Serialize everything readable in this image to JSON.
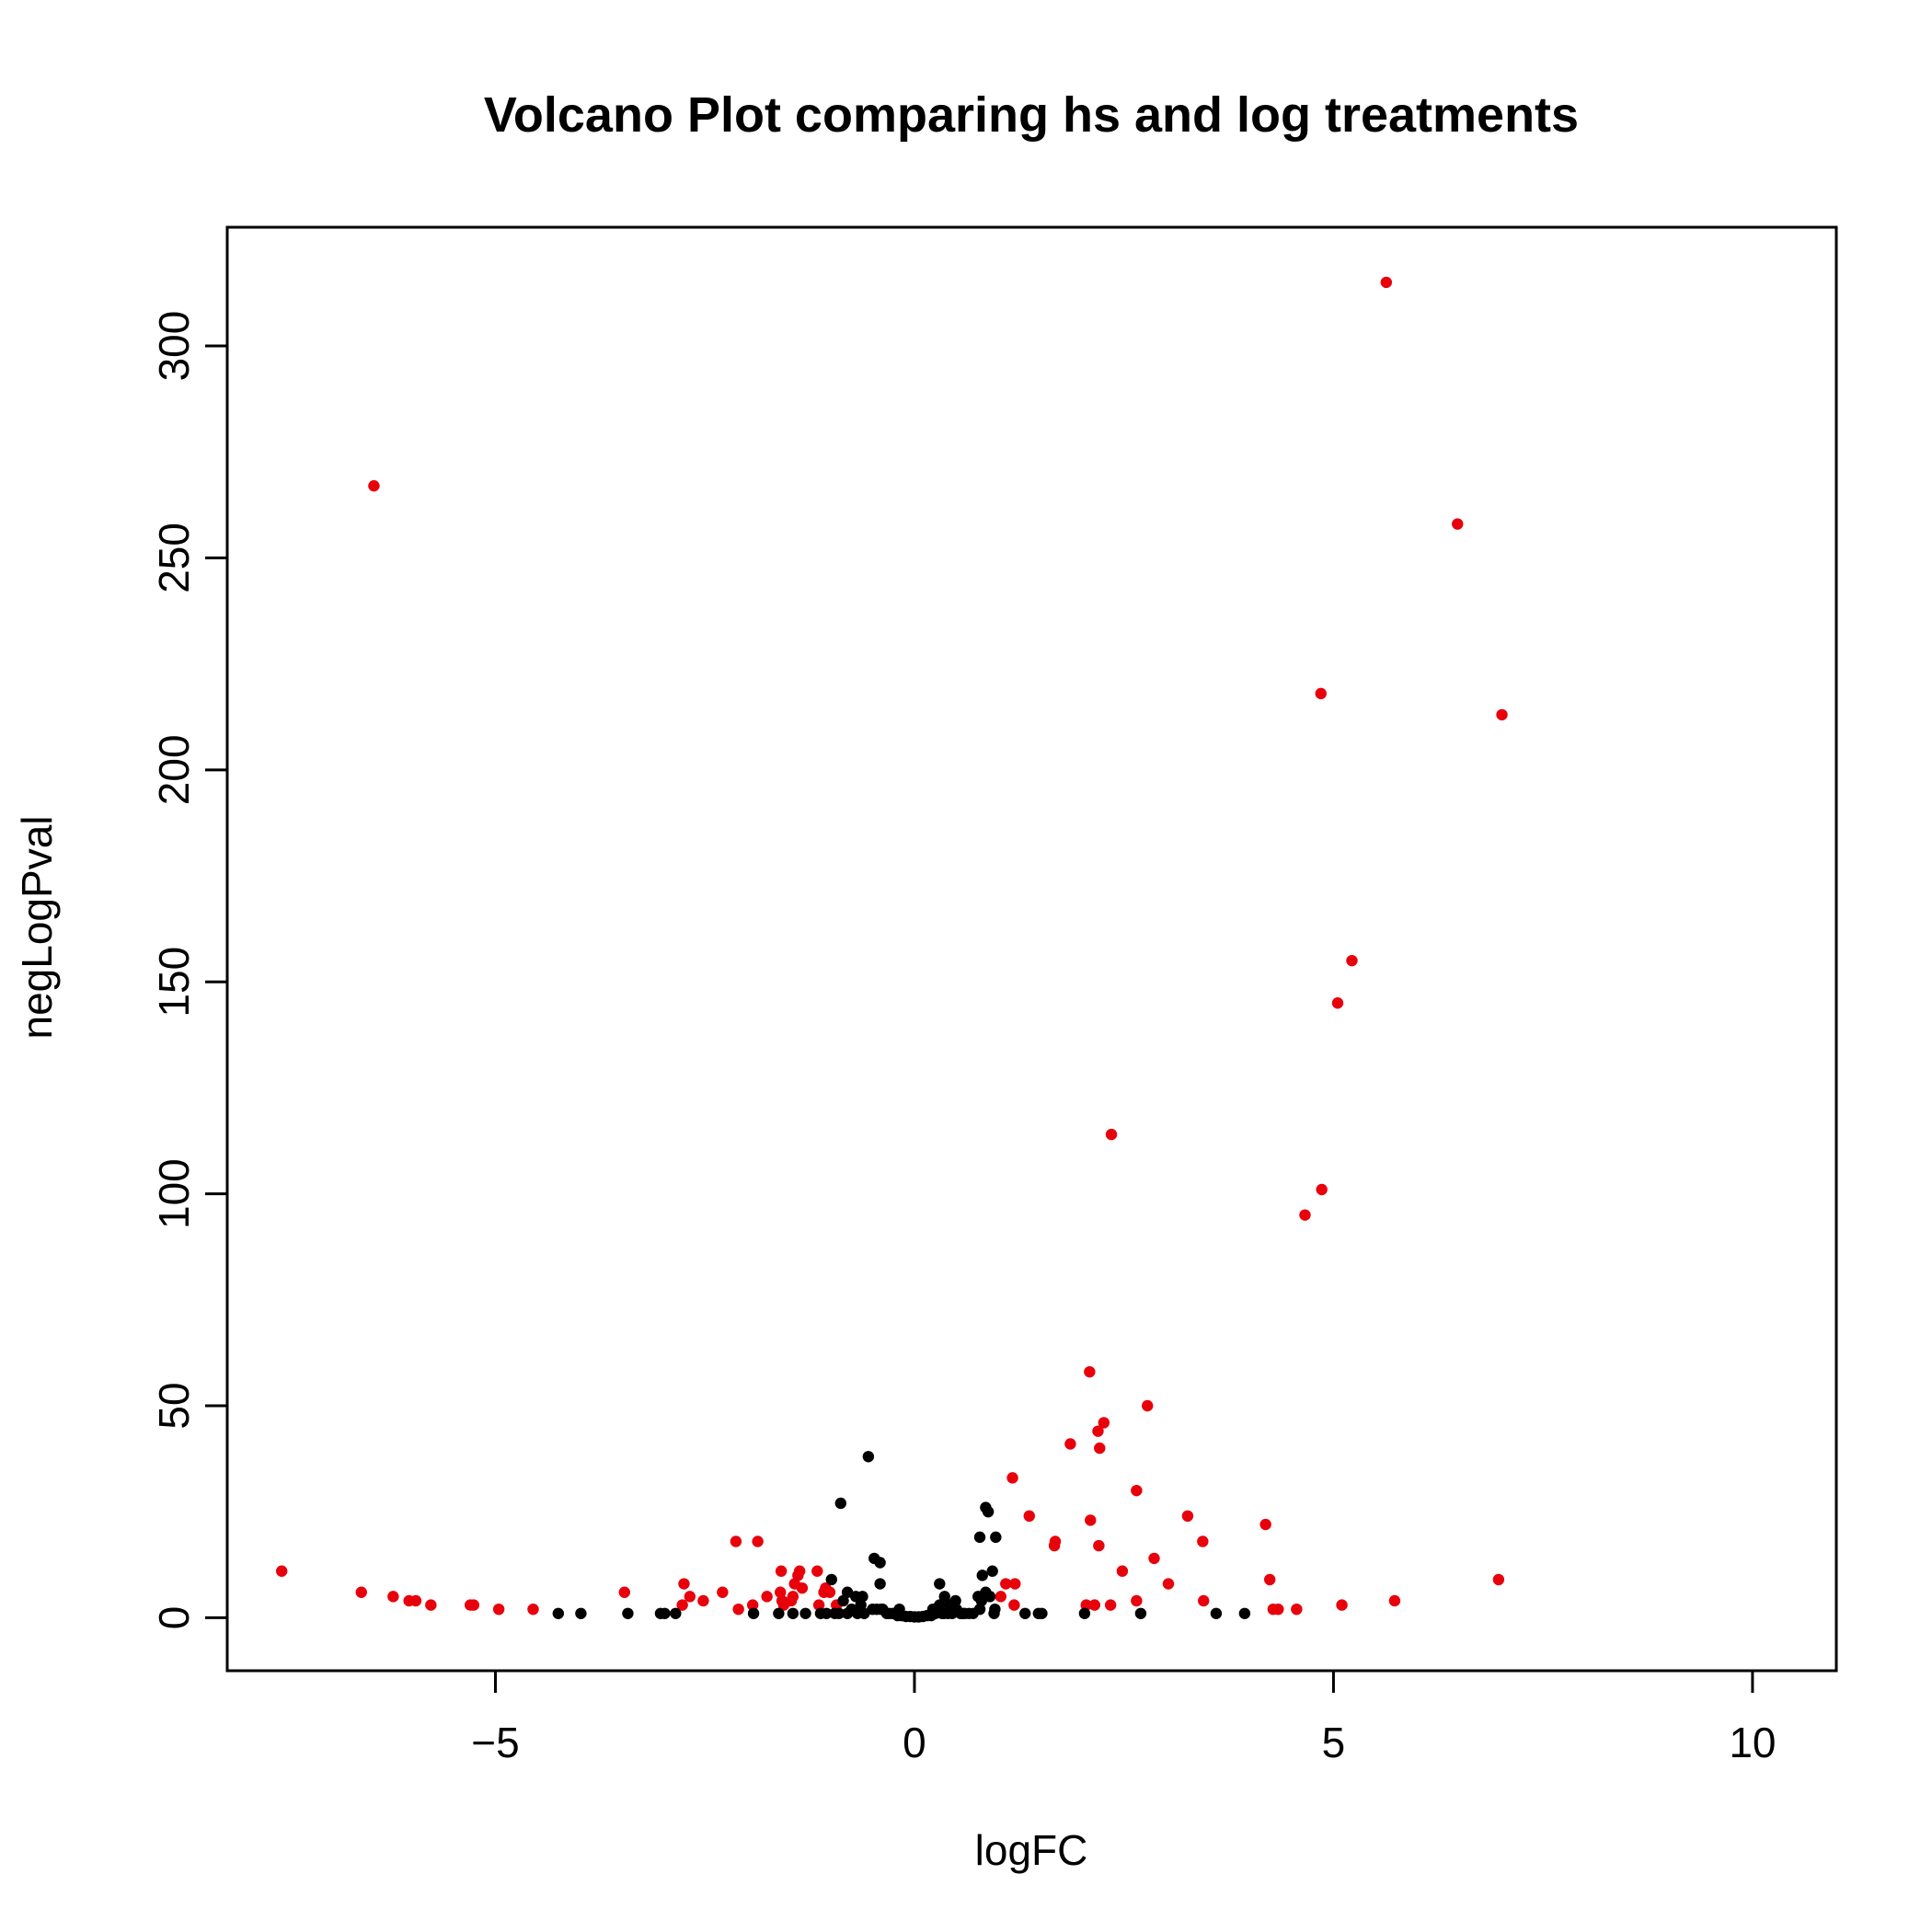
{
  "chart_data": {
    "type": "scatter",
    "title": "Volcano Plot comparing hs and log treatments",
    "xlabel": "logFC",
    "ylabel": "negLogPval",
    "xlim": [
      -8.2,
      11
    ],
    "ylim": [
      -12.5,
      328
    ],
    "xticks": [
      -5,
      0,
      5,
      10
    ],
    "xtick_labels": [
      "−5",
      "0",
      "5",
      "10"
    ],
    "yticks": [
      0,
      50,
      100,
      150,
      200,
      250,
      300
    ],
    "ytick_labels": [
      "0",
      "50",
      "100",
      "150",
      "200",
      "250",
      "300"
    ],
    "grid": false,
    "legend": "none",
    "colors": {
      "significant": "#e8000b",
      "not_significant": "#000000"
    },
    "series": [
      {
        "color": "#e8000b",
        "x": [
          5.63,
          -6.45,
          6.48,
          4.85,
          7.01,
          5.22,
          5.05,
          2.35,
          4.86,
          4.66,
          2.09,
          2.78,
          2.26,
          2.19,
          2.21,
          1.86,
          1.17,
          2.65,
          3.26,
          1.37,
          4.19,
          2.1,
          1.68,
          1.67,
          3.44,
          2.2,
          2.86,
          2.48,
          4.24,
          3.03,
          3.45,
          2.65,
          2.15,
          2.05,
          2.34,
          5.73,
          5.1,
          4.56,
          4.28,
          4.34,
          1.09,
          1.2,
          1.03,
          1.19,
          6.97,
          -7.55,
          -6.6,
          -6.22,
          -6.03,
          -5.95,
          -5.77,
          -5.3,
          -5.26,
          -4.96,
          -4.55,
          -3.46,
          -2.75,
          -2.68,
          -2.52,
          -2.29,
          -2.13,
          -2.1,
          -1.93,
          -1.87,
          -1.76,
          -1.6,
          -1.59,
          -1.58,
          -1.45,
          -1.43,
          -1.39,
          -1.37,
          -1.34,
          -1.47,
          -1.16,
          -1.14,
          -1.08,
          -1.06,
          -1.01,
          -0.93,
          -1.56,
          -2.77
        ],
        "y": [
          315,
          267,
          258,
          218,
          213,
          155,
          145,
          114,
          101,
          95,
          58,
          50,
          46,
          44,
          40,
          41,
          33,
          30,
          24,
          24,
          22,
          23,
          18,
          17,
          18,
          17,
          14,
          11,
          9,
          8,
          4,
          4,
          3,
          3,
          3,
          4,
          3,
          2,
          2,
          2,
          8,
          8,
          5,
          3,
          9,
          11,
          6,
          5,
          4,
          4,
          3,
          3,
          3,
          2,
          2,
          6,
          8,
          5,
          4,
          6,
          18,
          2,
          3,
          18,
          5,
          6,
          11,
          4,
          5,
          8,
          10,
          11,
          7,
          4,
          11,
          3,
          6,
          7,
          6,
          3,
          3,
          3
        ]
      },
      {
        "color": "#000000",
        "x": [
          -0.55,
          -0.88,
          0.85,
          0.88,
          0.78,
          0.97,
          -0.48,
          -0.41,
          0.93,
          -0.99,
          -0.41,
          0.81,
          0.3,
          -0.8,
          -0.7,
          0.36,
          -0.62,
          -0.85,
          0.9,
          0.49,
          0.76,
          -0.64,
          0.96,
          0.8,
          0.3,
          -0.45,
          -0.38,
          0.85,
          0.42,
          0.5,
          0.78,
          -0.75,
          -0.5,
          0.55,
          0.6,
          -0.26,
          -0.6,
          0.95,
          0.4,
          -0.9,
          0.35,
          0.25,
          0.65,
          -0.33,
          -0.2,
          -0.15,
          -0.1,
          -0.05,
          0.0,
          0.05,
          0.1,
          0.15,
          0.2,
          -0.3,
          0.33,
          0.45,
          0.58,
          0.7,
          -0.68,
          -0.8,
          -0.95,
          -1.05,
          -1.12,
          -1.3,
          -1.45,
          -1.62,
          -1.92,
          -2.85,
          -2.98,
          -3.03,
          -3.42,
          -3.98,
          -4.25,
          1.32,
          1.48,
          1.52,
          2.03,
          2.7,
          3.6,
          3.94,
          -0.4,
          0.45,
          0.22,
          -0.18
        ],
        "y": [
          38,
          27,
          26,
          25,
          19,
          19,
          14,
          13,
          11,
          9,
          8,
          10,
          8,
          6,
          5,
          5,
          5,
          4,
          5,
          4,
          5,
          3,
          2,
          4,
          3,
          2,
          2,
          6,
          3,
          2,
          2,
          2,
          2,
          1,
          1,
          1,
          1,
          1,
          1,
          1,
          1,
          1,
          1,
          1,
          0.5,
          0.5,
          0.3,
          0.3,
          0.2,
          0.2,
          0.3,
          0.5,
          0.5,
          1,
          1,
          1,
          1,
          1,
          1,
          1,
          1,
          1,
          1,
          1,
          1,
          1,
          1,
          1,
          1,
          1,
          1,
          1,
          1,
          1,
          1,
          1,
          1,
          1,
          1,
          1,
          2,
          2,
          2,
          2
        ]
      }
    ]
  }
}
